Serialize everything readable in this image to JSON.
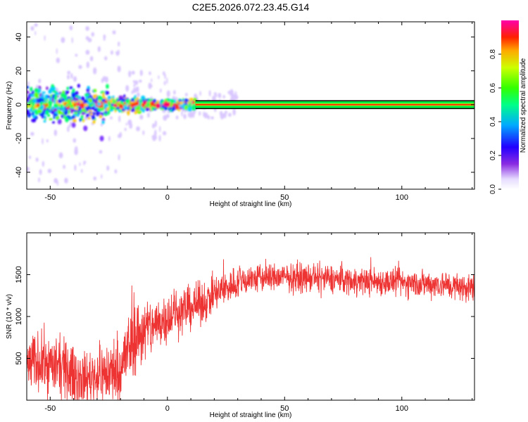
{
  "title": "C2E5.2026.072.23.45.G14",
  "colors": {
    "snr_line": "#ee3333",
    "background": "#ffffff",
    "axes": "#000000",
    "colormap": [
      "#ffffff",
      "#d9c7ff",
      "#8a2be2",
      "#3b00ff",
      "#0033ff",
      "#00ccff",
      "#00ff66",
      "#66ff00",
      "#ffcc00",
      "#ff3300",
      "#ff0066",
      "#ff00ff"
    ]
  },
  "chart_data": [
    {
      "type": "heatmap",
      "xlabel": "Height of straight line (km)",
      "ylabel": "Frequency (Hz)",
      "xlim": [
        -60,
        131
      ],
      "ylim": [
        -50,
        49
      ],
      "xticks": [
        -50,
        0,
        50,
        100
      ],
      "yticks": [
        -40,
        -20,
        0,
        20,
        40
      ],
      "grid": false,
      "colorbar": {
        "label": "Normalized spectral amplitude",
        "range": [
          0,
          1
        ],
        "ticks": [
          "0.0",
          "0.2",
          "0.4",
          "0.6",
          "0.8"
        ]
      },
      "features": {
        "noisy_region_x": [
          -60,
          12
        ],
        "steady_tone_x": [
          12,
          131
        ],
        "steady_tone_freq_hz": 0,
        "steady_tone_band_hz": [
          -2,
          2
        ]
      }
    },
    {
      "type": "line",
      "xlabel": "Height of straight line (km)",
      "ylabel": "SNR (10 * v/v)",
      "xlim": [
        -60,
        131
      ],
      "ylim": [
        0,
        2000
      ],
      "xticks": [
        -50,
        0,
        50,
        100
      ],
      "yticks": [
        500,
        1000,
        1500
      ],
      "grid": false,
      "series": [
        {
          "x": [
            -60,
            -55,
            -50,
            -45,
            -40,
            -35,
            -30,
            -25,
            -20,
            -15,
            -10,
            -5,
            0,
            5,
            10,
            15,
            20,
            25,
            30,
            35,
            40,
            45,
            50,
            55,
            60,
            65,
            70,
            75,
            80,
            85,
            90,
            95,
            100,
            105,
            110,
            115,
            120,
            125,
            130
          ],
          "y": [
            420,
            470,
            420,
            380,
            300,
            260,
            300,
            320,
            380,
            720,
            830,
            900,
            1000,
            1060,
            1110,
            1160,
            1260,
            1340,
            1410,
            1450,
            1460,
            1470,
            1470,
            1460,
            1460,
            1450,
            1450,
            1440,
            1430,
            1420,
            1420,
            1410,
            1400,
            1400,
            1390,
            1390,
            1370,
            1350,
            1340
          ],
          "noise": [
            210,
            230,
            240,
            230,
            220,
            200,
            230,
            260,
            280,
            300,
            260,
            220,
            200,
            180,
            170,
            160,
            150,
            140,
            130,
            120,
            120,
            110,
            110,
            110,
            110,
            110,
            110,
            110,
            110,
            110,
            110,
            110,
            110,
            110,
            110,
            110,
            110,
            110,
            110
          ]
        }
      ]
    }
  ]
}
